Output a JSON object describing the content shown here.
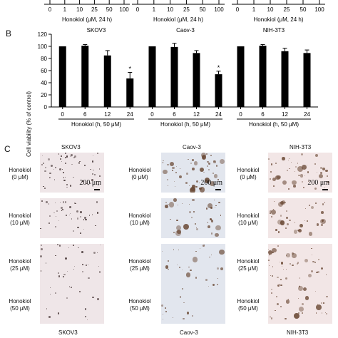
{
  "top_strip": {
    "ticks": [
      "0",
      "1",
      "10",
      "25",
      "50",
      "100"
    ],
    "captions": [
      "Honokiol (μM, 24 h)",
      "Honokiol (μM, 24 h)",
      "Honokiol (μM, 24 h)"
    ]
  },
  "panel_b": {
    "letter": "B",
    "ylabel": "Cell viability (% of control)",
    "yticks": [
      "0",
      "20",
      "40",
      "60",
      "80",
      "100",
      "120"
    ]
  },
  "chart_data": [
    {
      "type": "bar",
      "title": "SKOV3",
      "categories": [
        "0",
        "6",
        "12",
        "24"
      ],
      "values": [
        100,
        101,
        85,
        47
      ],
      "errors": [
        0,
        2,
        8,
        10
      ],
      "significant": [
        false,
        false,
        false,
        true
      ],
      "sig_marker": "*",
      "xlabel": "Honokiol (h, 50 μM)",
      "ylabel": "Cell viability (% of control)",
      "ylim": [
        0,
        120
      ]
    },
    {
      "type": "bar",
      "title": "Caov-3",
      "categories": [
        "0",
        "6",
        "12",
        "24"
      ],
      "values": [
        100,
        99,
        89,
        54
      ],
      "errors": [
        0,
        6,
        4,
        5
      ],
      "significant": [
        false,
        false,
        false,
        true
      ],
      "sig_marker": "*",
      "xlabel": "Honokiol (h, 50 μM)",
      "ylabel": "Cell viability (% of control)",
      "ylim": [
        0,
        120
      ]
    },
    {
      "type": "bar",
      "title": "NIH-3T3",
      "categories": [
        "0",
        "6",
        "12",
        "24"
      ],
      "values": [
        100,
        101,
        92,
        89
      ],
      "errors": [
        0,
        2,
        5,
        5
      ],
      "significant": [
        false,
        false,
        false,
        false
      ],
      "sig_marker": "*",
      "xlabel": "Honokiol (h, 50 μM)",
      "ylabel": "Cell viability (% of control)",
      "ylim": [
        0,
        120
      ]
    }
  ],
  "panel_c": {
    "letter": "C",
    "columns": [
      {
        "title": "SKOV3",
        "bottom": "SKOV3",
        "scale": "200 μm"
      },
      {
        "title": "Caov-3",
        "bottom": "Caov-3",
        "scale": "200 μm"
      },
      {
        "title": "NIH-3T3",
        "bottom": "NIH-3T3",
        "scale": "200 μm"
      }
    ],
    "row_labels": [
      {
        "name": "Honokiol",
        "dose": "(0 μM)"
      },
      {
        "name": "Honokiol",
        "dose": "(10 μM)"
      },
      {
        "name": "Honokiol",
        "dose": "(25 μM)"
      },
      {
        "name": "Honokiol",
        "dose": "(50 μM)"
      }
    ],
    "colony_density": [
      [
        0.9,
        0.6,
        0.35,
        0.05
      ],
      [
        0.8,
        0.5,
        0.25,
        0.05
      ],
      [
        0.7,
        0.6,
        0.55,
        0.45
      ]
    ],
    "colors": {
      "skov3_bg": "#efe6e8",
      "caov3_bg": "#e2e6ee",
      "nih_bg": "#f2e6e6",
      "cell_dark": "#3a2a2a",
      "cell_brown": "#6b4a36"
    }
  }
}
